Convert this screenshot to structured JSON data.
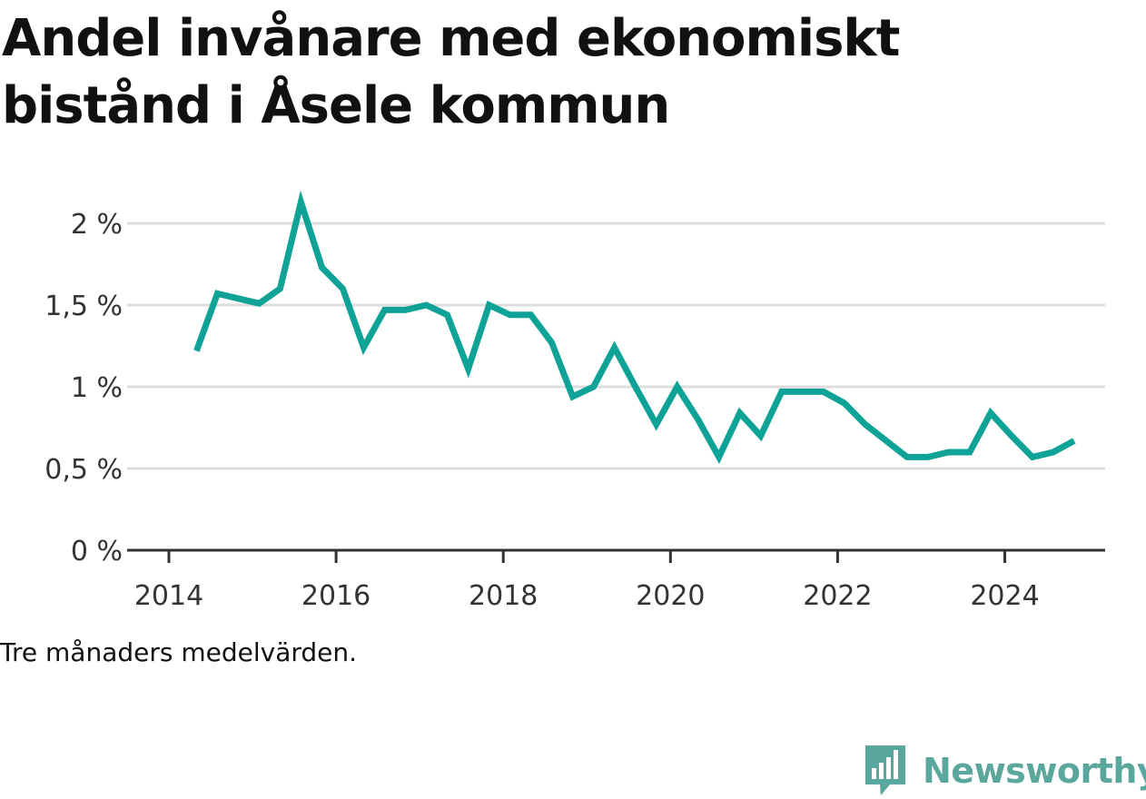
{
  "title": "Andel invånare med ekonomiskt bistånd i Åsele kommun",
  "note": "Tre månaders medelvärden.",
  "brand": {
    "name": "Newsworthy",
    "color": "#5aa79e",
    "icon": "bar-chart-speech-icon"
  },
  "colors": {
    "line": "#0fa398",
    "grid": "#dddddd",
    "axis": "#333333"
  },
  "chart_data": {
    "type": "line",
    "title": "Andel invånare med ekonomiskt bistånd i Åsele kommun",
    "xlabel": "",
    "ylabel": "",
    "xlim": [
      2014,
      2025.2
    ],
    "ylim": [
      0,
      2
    ],
    "y_ticks": [
      0,
      0.5,
      1,
      1.5,
      2
    ],
    "y_tick_labels": [
      "0 %",
      "0,5 %",
      "1 %",
      "1,5 %",
      "2 %"
    ],
    "x_ticks": [
      2014,
      2016,
      2018,
      2020,
      2022,
      2024
    ],
    "x_tick_labels": [
      "2014",
      "2016",
      "2018",
      "2020",
      "2022",
      "2024"
    ],
    "grid": true,
    "series": [
      {
        "x": [
          2014.33,
          2014.58,
          2014.83,
          2015.08,
          2015.33,
          2015.58,
          2015.83,
          2016.08,
          2016.33,
          2016.58,
          2016.83,
          2017.08,
          2017.33,
          2017.58,
          2017.83,
          2018.08,
          2018.33,
          2018.58,
          2018.83,
          2019.08,
          2019.33,
          2019.58,
          2019.83,
          2020.08,
          2020.33,
          2020.58,
          2020.83,
          2021.08,
          2021.33,
          2021.58,
          2021.83,
          2022.08,
          2022.33,
          2022.58,
          2022.83,
          2023.08,
          2023.33,
          2023.58,
          2023.83,
          2024.08,
          2024.33,
          2024.58,
          2024.83
        ],
        "values": [
          1.22,
          1.57,
          1.54,
          1.51,
          1.6,
          2.13,
          1.73,
          1.6,
          1.24,
          1.47,
          1.47,
          1.5,
          1.44,
          1.11,
          1.5,
          1.44,
          1.44,
          1.27,
          0.94,
          1.0,
          1.24,
          1.0,
          0.77,
          1.0,
          0.8,
          0.57,
          0.84,
          0.7,
          0.97,
          0.97,
          0.97,
          0.9,
          0.77,
          0.67,
          0.57,
          0.57,
          0.6,
          0.6,
          0.84,
          0.7,
          0.57,
          0.6,
          0.67
        ]
      }
    ]
  }
}
